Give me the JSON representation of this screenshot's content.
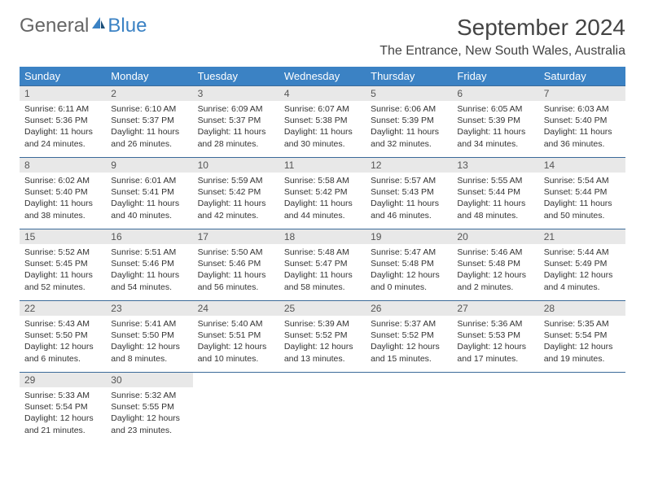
{
  "logo": {
    "part1": "General",
    "part2": "Blue"
  },
  "title": "September 2024",
  "location": "The Entrance, New South Wales, Australia",
  "colors": {
    "header_bg": "#3b82c4",
    "header_text": "#ffffff",
    "daynum_bg": "#e8e8e8",
    "cell_border": "#3b6a99",
    "logo_accent": "#3b82c4"
  },
  "weekdays": [
    "Sunday",
    "Monday",
    "Tuesday",
    "Wednesday",
    "Thursday",
    "Friday",
    "Saturday"
  ],
  "weeks": [
    [
      {
        "n": "1",
        "sr": "6:11 AM",
        "ss": "5:36 PM",
        "dl": "11 hours and 24 minutes."
      },
      {
        "n": "2",
        "sr": "6:10 AM",
        "ss": "5:37 PM",
        "dl": "11 hours and 26 minutes."
      },
      {
        "n": "3",
        "sr": "6:09 AM",
        "ss": "5:37 PM",
        "dl": "11 hours and 28 minutes."
      },
      {
        "n": "4",
        "sr": "6:07 AM",
        "ss": "5:38 PM",
        "dl": "11 hours and 30 minutes."
      },
      {
        "n": "5",
        "sr": "6:06 AM",
        "ss": "5:39 PM",
        "dl": "11 hours and 32 minutes."
      },
      {
        "n": "6",
        "sr": "6:05 AM",
        "ss": "5:39 PM",
        "dl": "11 hours and 34 minutes."
      },
      {
        "n": "7",
        "sr": "6:03 AM",
        "ss": "5:40 PM",
        "dl": "11 hours and 36 minutes."
      }
    ],
    [
      {
        "n": "8",
        "sr": "6:02 AM",
        "ss": "5:40 PM",
        "dl": "11 hours and 38 minutes."
      },
      {
        "n": "9",
        "sr": "6:01 AM",
        "ss": "5:41 PM",
        "dl": "11 hours and 40 minutes."
      },
      {
        "n": "10",
        "sr": "5:59 AM",
        "ss": "5:42 PM",
        "dl": "11 hours and 42 minutes."
      },
      {
        "n": "11",
        "sr": "5:58 AM",
        "ss": "5:42 PM",
        "dl": "11 hours and 44 minutes."
      },
      {
        "n": "12",
        "sr": "5:57 AM",
        "ss": "5:43 PM",
        "dl": "11 hours and 46 minutes."
      },
      {
        "n": "13",
        "sr": "5:55 AM",
        "ss": "5:44 PM",
        "dl": "11 hours and 48 minutes."
      },
      {
        "n": "14",
        "sr": "5:54 AM",
        "ss": "5:44 PM",
        "dl": "11 hours and 50 minutes."
      }
    ],
    [
      {
        "n": "15",
        "sr": "5:52 AM",
        "ss": "5:45 PM",
        "dl": "11 hours and 52 minutes."
      },
      {
        "n": "16",
        "sr": "5:51 AM",
        "ss": "5:46 PM",
        "dl": "11 hours and 54 minutes."
      },
      {
        "n": "17",
        "sr": "5:50 AM",
        "ss": "5:46 PM",
        "dl": "11 hours and 56 minutes."
      },
      {
        "n": "18",
        "sr": "5:48 AM",
        "ss": "5:47 PM",
        "dl": "11 hours and 58 minutes."
      },
      {
        "n": "19",
        "sr": "5:47 AM",
        "ss": "5:48 PM",
        "dl": "12 hours and 0 minutes."
      },
      {
        "n": "20",
        "sr": "5:46 AM",
        "ss": "5:48 PM",
        "dl": "12 hours and 2 minutes."
      },
      {
        "n": "21",
        "sr": "5:44 AM",
        "ss": "5:49 PM",
        "dl": "12 hours and 4 minutes."
      }
    ],
    [
      {
        "n": "22",
        "sr": "5:43 AM",
        "ss": "5:50 PM",
        "dl": "12 hours and 6 minutes."
      },
      {
        "n": "23",
        "sr": "5:41 AM",
        "ss": "5:50 PM",
        "dl": "12 hours and 8 minutes."
      },
      {
        "n": "24",
        "sr": "5:40 AM",
        "ss": "5:51 PM",
        "dl": "12 hours and 10 minutes."
      },
      {
        "n": "25",
        "sr": "5:39 AM",
        "ss": "5:52 PM",
        "dl": "12 hours and 13 minutes."
      },
      {
        "n": "26",
        "sr": "5:37 AM",
        "ss": "5:52 PM",
        "dl": "12 hours and 15 minutes."
      },
      {
        "n": "27",
        "sr": "5:36 AM",
        "ss": "5:53 PM",
        "dl": "12 hours and 17 minutes."
      },
      {
        "n": "28",
        "sr": "5:35 AM",
        "ss": "5:54 PM",
        "dl": "12 hours and 19 minutes."
      }
    ],
    [
      {
        "n": "29",
        "sr": "5:33 AM",
        "ss": "5:54 PM",
        "dl": "12 hours and 21 minutes."
      },
      {
        "n": "30",
        "sr": "5:32 AM",
        "ss": "5:55 PM",
        "dl": "12 hours and 23 minutes."
      },
      null,
      null,
      null,
      null,
      null
    ]
  ],
  "labels": {
    "sunrise": "Sunrise:",
    "sunset": "Sunset:",
    "daylight": "Daylight:"
  }
}
